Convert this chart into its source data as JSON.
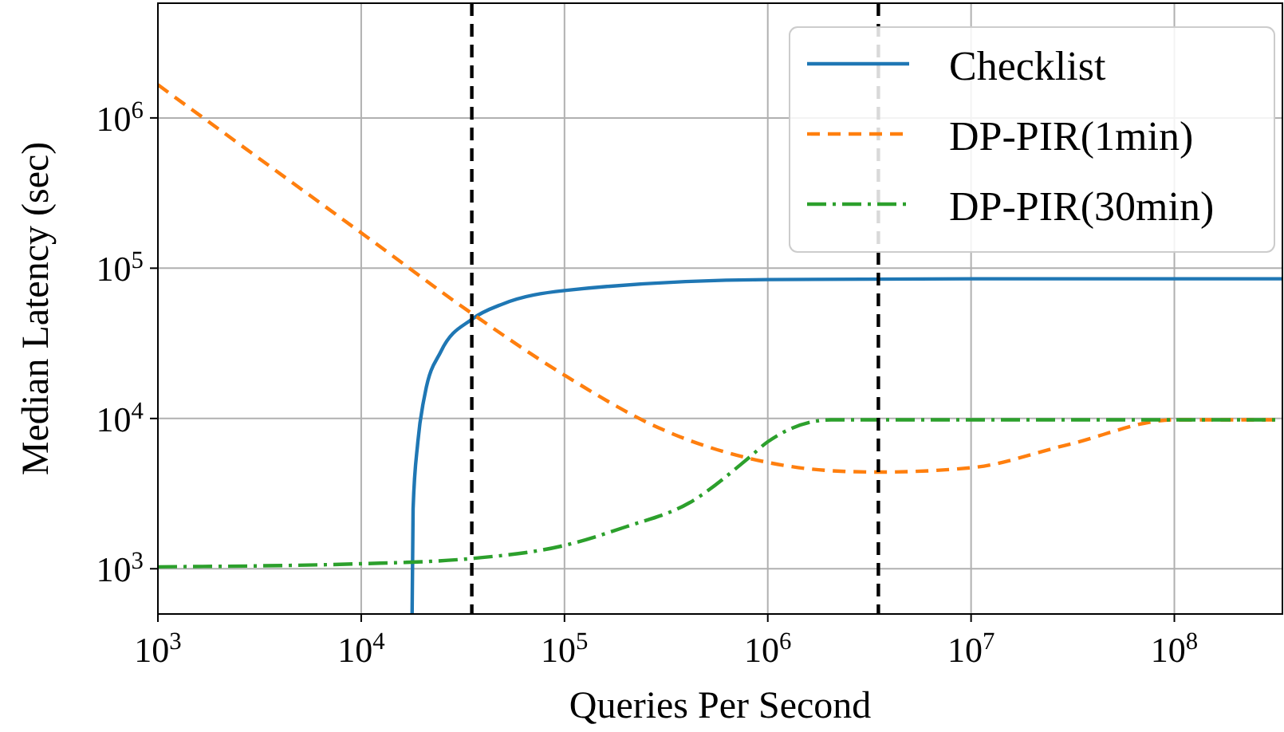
{
  "chart_data": {
    "type": "line",
    "xlabel": "Queries Per Second",
    "ylabel": "Median Latency (sec)",
    "log": "xy",
    "grid": true,
    "legend": "top right",
    "xlim": [
      1000,
      340000000
    ],
    "ylim": [
      500,
      5800000
    ],
    "xticks": [
      {
        "value": 1000,
        "label": "10$^{3}$"
      },
      {
        "value": 10000,
        "label": "10$^{4}$"
      },
      {
        "value": 100000,
        "label": "10$^{5}$"
      },
      {
        "value": 1000000,
        "label": "10$^{6}$"
      },
      {
        "value": 10000000,
        "label": "10$^{7}$"
      },
      {
        "value": 100000000,
        "label": "10$^{8}$"
      }
    ],
    "yticks": [
      {
        "value": 1000,
        "label": "10$^{3}$"
      },
      {
        "value": 10000,
        "label": "10$^{4}$"
      },
      {
        "value": 100000,
        "label": "10$^{5}$"
      },
      {
        "value": 1000000,
        "label": "10$^{6}$"
      }
    ],
    "ref_lines": [
      {
        "axis": "x",
        "value": 35000,
        "color": "#000000",
        "line_style": "dashed"
      },
      {
        "axis": "x",
        "value": 3500000,
        "color": "#000000",
        "line_style": "dashed"
      }
    ],
    "series": [
      {
        "name": "Checklist",
        "color": "#1f77b4",
        "line_style": "solid",
        "x": [
          17800,
          18000,
          19000,
          20600,
          24700,
          35000,
          50000,
          100000,
          1000000,
          10000000,
          340000000
        ],
        "values": [
          500,
          2500,
          7000,
          14600,
          28000,
          45700,
          58000,
          71000,
          84000,
          85000,
          85000
        ]
      },
      {
        "name": "DP-PIR(1min)",
        "color": "#ff7f0e",
        "line_style": "dashed",
        "x": [
          1000,
          10000,
          35000,
          100000,
          300000,
          1000000,
          2000000,
          3500000,
          10000000,
          30000000,
          100000000,
          340000000
        ],
        "values": [
          1660000,
          172000,
          50000,
          19400,
          8500,
          5100,
          4500,
          4400,
          4700,
          6700,
          9800,
          9800
        ]
      },
      {
        "name": "DP-PIR(30min)",
        "color": "#2ca02c",
        "line_style": "dashdot",
        "x": [
          1000,
          10000,
          35000,
          100000,
          200000,
          410000,
          810000,
          1000000,
          2050000,
          340000000
        ],
        "values": [
          1030,
          1080,
          1170,
          1430,
          1900,
          2740,
          5500,
          7000,
          9800,
          9800
        ]
      }
    ]
  }
}
